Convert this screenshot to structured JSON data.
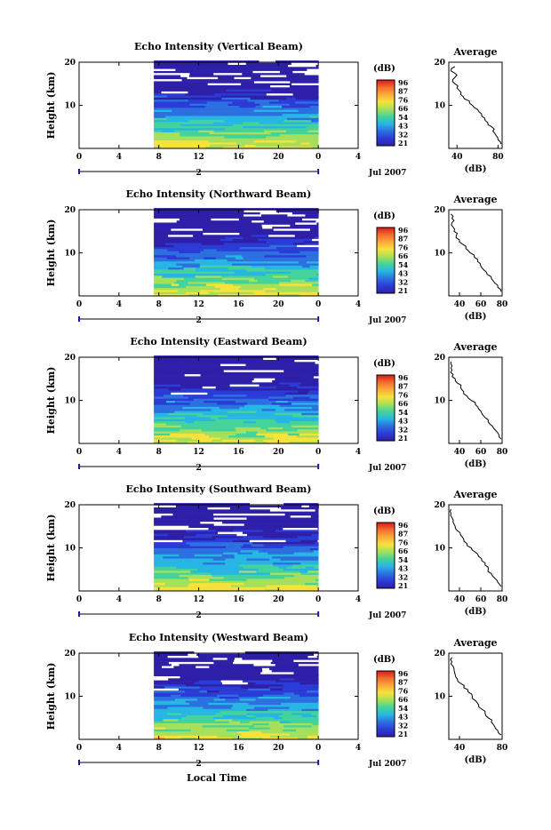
{
  "x_axis_label": "Local Time",
  "day_label": "2",
  "month_label": "Jul 2007",
  "colorbar": {
    "unit": "(dB)",
    "levels": [
      "96",
      "87",
      "76",
      "66",
      "54",
      "43",
      "32",
      "21"
    ],
    "colors": [
      "#d7191c",
      "#f46d2e",
      "#fcab3a",
      "#f5e33b",
      "#a6e05a",
      "#44d39a",
      "#27b6e3",
      "#2c6fe0",
      "#2a3bd6",
      "#2e1fa8"
    ]
  },
  "chart_data": [
    {
      "type": "heatmap",
      "title": "Echo Intensity (Vertical Beam)",
      "ylabel": "Height (km)",
      "xlim": [
        0,
        28
      ],
      "ylim": [
        0,
        20
      ],
      "x_ticks": [
        "0",
        "4",
        "8",
        "12",
        "16",
        "20",
        "0",
        "4"
      ],
      "y_ticks": [
        "10",
        "20"
      ],
      "data_x_range": [
        7.5,
        24
      ],
      "average_profile": {
        "title": "Average",
        "xlabel": "(dB)",
        "xlim": [
          32,
          84
        ],
        "x_ticks": [
          "40",
          "80"
        ],
        "y_ticks": [
          "10",
          "20"
        ],
        "heights": [
          1,
          2,
          3,
          4,
          5,
          6,
          7,
          8,
          9,
          10,
          11,
          12,
          13,
          14,
          15,
          16,
          17,
          18,
          19
        ],
        "values": [
          83,
          80,
          78,
          75,
          74,
          70,
          67,
          64,
          60,
          55,
          52,
          46,
          44,
          40,
          38,
          36,
          40,
          34,
          38
        ]
      }
    },
    {
      "type": "heatmap",
      "title": "Echo Intensity (Northward Beam)",
      "ylabel": "Height (km)",
      "xlim": [
        0,
        28
      ],
      "ylim": [
        0,
        20
      ],
      "x_ticks": [
        "0",
        "4",
        "8",
        "12",
        "16",
        "20",
        "0",
        "4"
      ],
      "y_ticks": [
        "10",
        "20"
      ],
      "data_x_range": [
        7.5,
        24
      ],
      "average_profile": {
        "title": "Average",
        "xlabel": "(dB)",
        "xlim": [
          30,
          80
        ],
        "x_ticks": [
          "40",
          "60",
          "80"
        ],
        "y_ticks": [
          "10",
          "20"
        ],
        "heights": [
          1,
          2,
          3,
          4,
          5,
          6,
          7,
          8,
          9,
          10,
          11,
          12,
          13,
          14,
          15,
          16,
          17,
          18,
          19
        ],
        "values": [
          79,
          76,
          73,
          70,
          66,
          63,
          60,
          57,
          54,
          50,
          46,
          43,
          40,
          37,
          35,
          34,
          33,
          33,
          32
        ]
      }
    },
    {
      "type": "heatmap",
      "title": "Echo Intensity (Eastward Beam)",
      "ylabel": "Height (km)",
      "xlim": [
        0,
        28
      ],
      "ylim": [
        0,
        20
      ],
      "x_ticks": [
        "0",
        "4",
        "8",
        "12",
        "16",
        "20",
        "0",
        "4"
      ],
      "y_ticks": [
        "10",
        "20"
      ],
      "data_x_range": [
        7.5,
        24
      ],
      "average_profile": {
        "title": "Average",
        "xlabel": "(dB)",
        "xlim": [
          30,
          80
        ],
        "x_ticks": [
          "40",
          "60",
          "80"
        ],
        "y_ticks": [
          "10",
          "20"
        ],
        "heights": [
          1,
          2,
          3,
          4,
          5,
          6,
          7,
          8,
          9,
          10,
          11,
          12,
          13,
          14,
          15,
          16,
          17,
          18,
          19
        ],
        "values": [
          79,
          77,
          74,
          71,
          67,
          64,
          61,
          58,
          55,
          51,
          47,
          44,
          41,
          38,
          36,
          34,
          33,
          33,
          32
        ]
      }
    },
    {
      "type": "heatmap",
      "title": "Echo Intensity (Southward Beam)",
      "ylabel": "Height (km)",
      "xlim": [
        0,
        28
      ],
      "ylim": [
        0,
        20
      ],
      "x_ticks": [
        "0",
        "4",
        "8",
        "12",
        "16",
        "20",
        "0",
        "4"
      ],
      "y_ticks": [
        "10",
        "20"
      ],
      "data_x_range": [
        7.5,
        24
      ],
      "average_profile": {
        "title": "Average",
        "xlabel": "(dB)",
        "xlim": [
          30,
          80
        ],
        "x_ticks": [
          "40",
          "60",
          "80"
        ],
        "y_ticks": [
          "10",
          "20"
        ],
        "heights": [
          1,
          2,
          3,
          4,
          5,
          6,
          7,
          8,
          9,
          10,
          11,
          12,
          13,
          14,
          15,
          16,
          17,
          18,
          19
        ],
        "values": [
          79,
          76,
          73,
          70,
          67,
          64,
          61,
          58,
          55,
          51,
          47,
          44,
          41,
          38,
          36,
          34,
          33,
          32,
          32
        ]
      }
    },
    {
      "type": "heatmap",
      "title": "Echo Intensity (Westward Beam)",
      "ylabel": "Height (km)",
      "xlim": [
        0,
        28
      ],
      "ylim": [
        0,
        20
      ],
      "x_ticks": [
        "0",
        "4",
        "8",
        "12",
        "16",
        "20",
        "0",
        "4"
      ],
      "y_ticks": [
        "10",
        "20"
      ],
      "data_x_range": [
        7.5,
        24
      ],
      "average_profile": {
        "title": "Average",
        "xlabel": "(dB)",
        "xlim": [
          30,
          80
        ],
        "x_ticks": [
          "40",
          "80"
        ],
        "y_ticks": [
          "10",
          "20"
        ],
        "heights": [
          1,
          2,
          3,
          4,
          5,
          6,
          7,
          8,
          9,
          10,
          11,
          12,
          13,
          14,
          15,
          16,
          17,
          18,
          19
        ],
        "values": [
          79,
          76,
          73,
          70,
          67,
          64,
          61,
          58,
          55,
          52,
          48,
          44,
          41,
          38,
          36,
          35,
          34,
          33,
          33
        ]
      }
    }
  ]
}
